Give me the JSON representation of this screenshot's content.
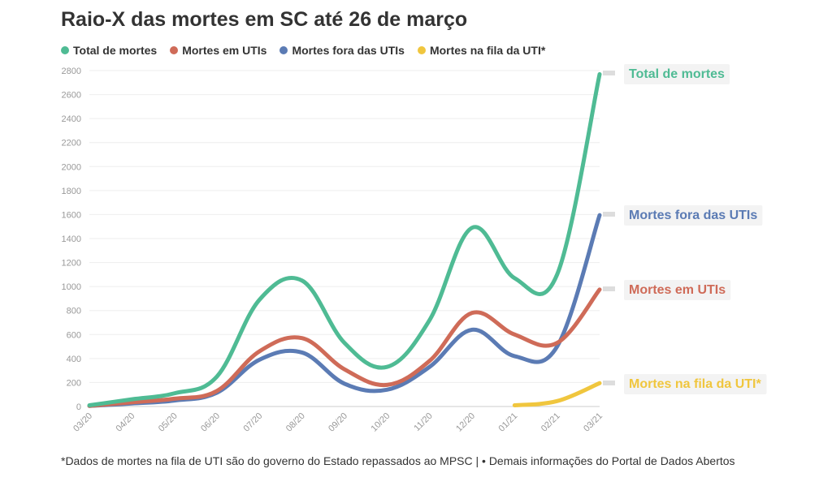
{
  "chart_data": {
    "type": "line",
    "title": "Raio-X das mortes em SC até 26 de março",
    "xlabel": "",
    "ylabel": "",
    "categories": [
      "03/20",
      "04/20",
      "05/20",
      "06/20",
      "07/20",
      "08/20",
      "09/20",
      "10/20",
      "11/20",
      "12/20",
      "01/21",
      "02/21",
      "03/21"
    ],
    "ylim": [
      0,
      2800
    ],
    "yticks": [
      0,
      200,
      400,
      600,
      800,
      1000,
      1200,
      1400,
      1600,
      1800,
      2000,
      2200,
      2400,
      2600,
      2800
    ],
    "grid": true,
    "series": [
      {
        "name": "Total de mortes",
        "color": "#4fbb94",
        "values": [
          10,
          60,
          110,
          250,
          890,
          1050,
          530,
          330,
          720,
          1490,
          1070,
          1100,
          2770
        ]
      },
      {
        "name": "Mortes em UTIs",
        "color": "#cf6b58",
        "values": [
          5,
          35,
          65,
          130,
          460,
          570,
          310,
          180,
          380,
          780,
          600,
          530,
          975
        ]
      },
      {
        "name": "Mortes fora das UTIs",
        "color": "#5b7bb4",
        "values": [
          5,
          25,
          50,
          115,
          390,
          450,
          190,
          140,
          330,
          640,
          420,
          500,
          1595
        ]
      },
      {
        "name": "Mortes na fila da UTI*",
        "color": "#f0c63e",
        "start_index": 10,
        "values": [
          null,
          null,
          null,
          null,
          null,
          null,
          null,
          null,
          null,
          null,
          10,
          45,
          195
        ]
      }
    ],
    "end_labels": [
      "Total de mortes",
      "Mortes fora das UTIs",
      "Mortes em UTIs",
      "Mortes na fila da UTI*"
    ],
    "footnote": "*Dados de mortes na fila de UTI são do governo do Estado repassados ao MPSC | • Demais informações do Portal de Dados Abertos"
  }
}
